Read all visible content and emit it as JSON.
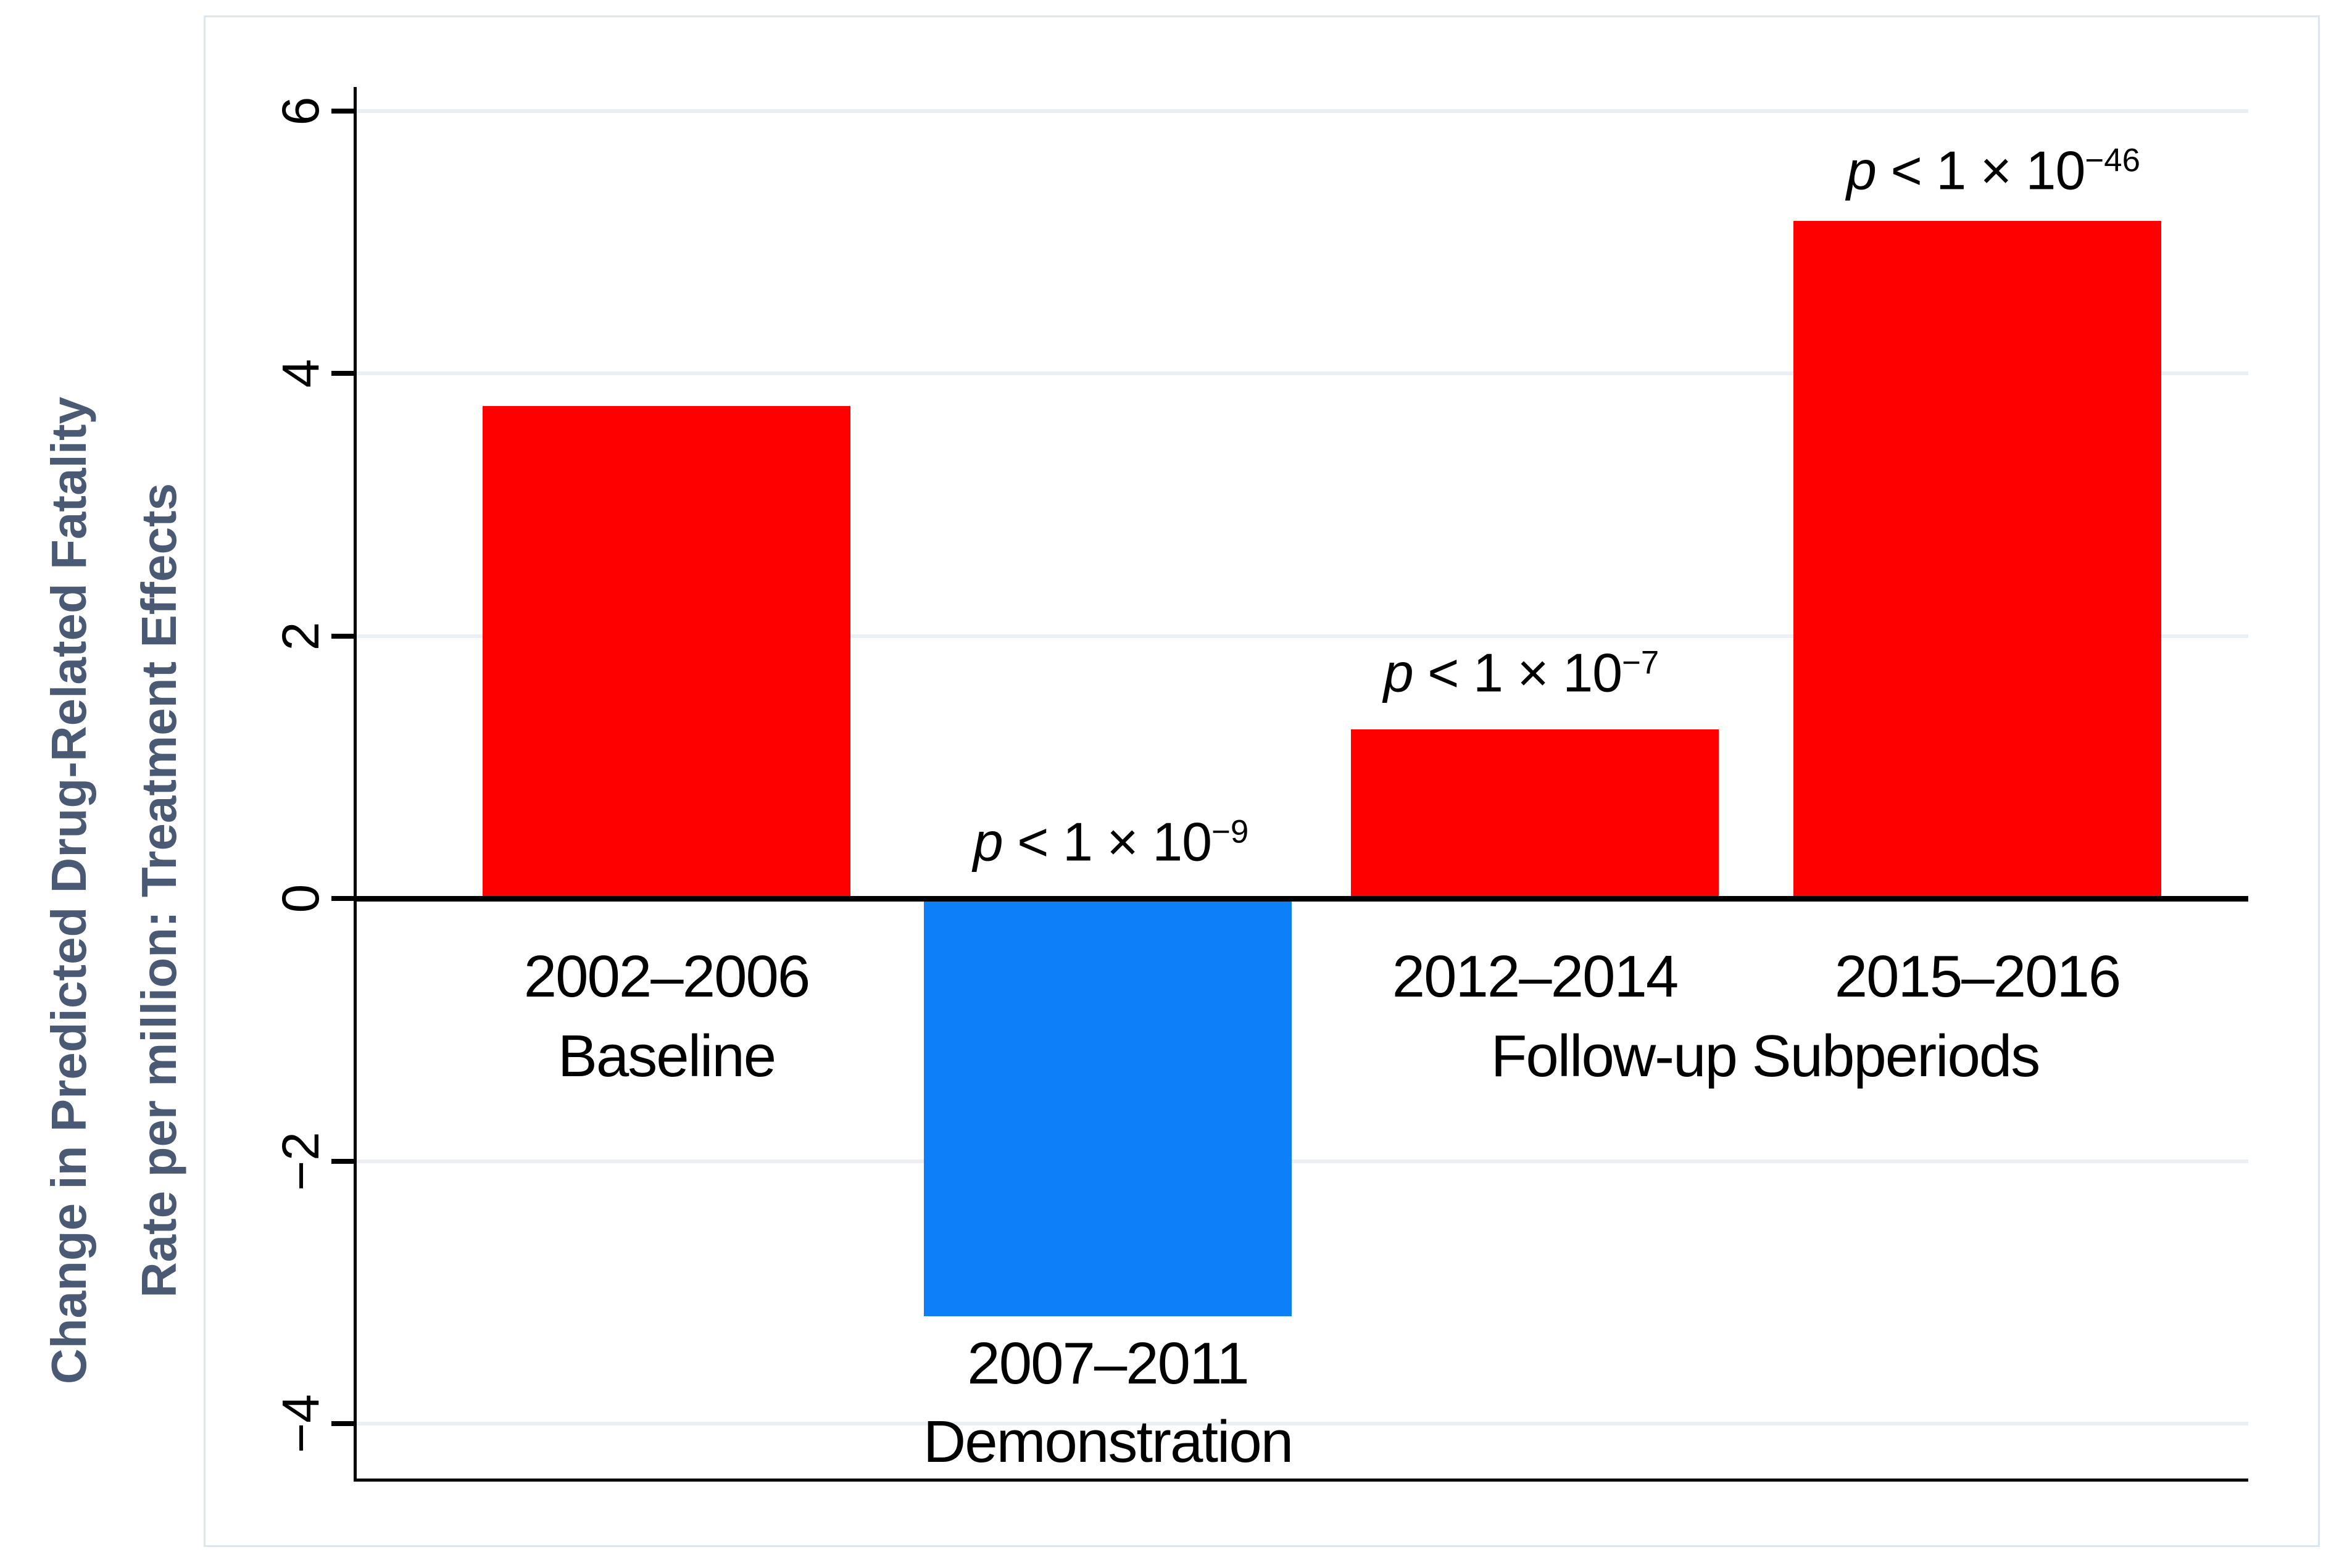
{
  "y_axis": {
    "title_line1": "Change in Predicted Drug-Related Fatality",
    "title_line2": "Rate per million: Treatment Effects",
    "title_color": "#4a5a74",
    "tick_labels": [
      "6",
      "4",
      "2",
      "0",
      "−2",
      "−4"
    ]
  },
  "chart_data": {
    "type": "bar",
    "title": "",
    "xlabel": "",
    "ylabel": "Change in Predicted Drug-Related Fatality Rate per million: Treatment Effects",
    "ylim": [
      -4.43,
      6.18
    ],
    "yticks": [
      6,
      4,
      2,
      0,
      -2,
      -4
    ],
    "grid": true,
    "legend": "none",
    "categories": [
      "2002–2006 Baseline",
      "2007–2011 Demonstration",
      "2012–2014",
      "2015–2016"
    ],
    "values": [
      3.75,
      -3.18,
      1.29,
      5.16
    ],
    "group_label": "Follow-up Subperiods",
    "bars": [
      {
        "label_line1": "2002–2006",
        "label_line2": "Baseline",
        "value": 3.75,
        "color": "#fe0000",
        "p_value": ""
      },
      {
        "label_line1": "2007–2011",
        "label_line2": "Demonstration",
        "value": -3.18,
        "color": "#0b80f8",
        "p_value": "p < 1 × 10−9"
      },
      {
        "label_line1": "2012–2014",
        "label_line2": "",
        "value": 1.29,
        "color": "#fe0000",
        "p_value": "p < 1 × 10−7"
      },
      {
        "label_line1": "2015–2016",
        "label_line2": "",
        "value": 5.16,
        "color": "#fe0000",
        "p_value": "p < 1 × 10−46"
      }
    ],
    "annotations": [
      {
        "bar_index": 1,
        "italic": "p",
        "rest": " < 1 × 10",
        "exp": "−9"
      },
      {
        "bar_index": 2,
        "italic": "p",
        "rest": " < 1 × 10",
        "exp": "−7"
      },
      {
        "bar_index": 3,
        "italic": "p",
        "rest": " < 1 × 10",
        "exp": "−46"
      }
    ],
    "colors": {
      "bar_red": "#fe0000",
      "bar_blue": "#0b80f8",
      "gridline": "#e9eff4",
      "axis": "#000000",
      "plot_border": "#dde6ed",
      "y_title": "#4a5a74"
    }
  }
}
